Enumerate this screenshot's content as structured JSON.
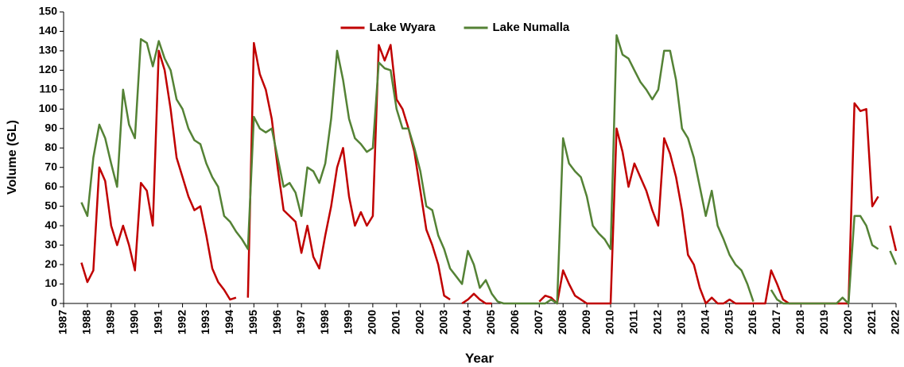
{
  "chart_data": {
    "type": "line",
    "xlabel": "Year",
    "ylabel": "Volume (GL)",
    "legend": "upper center",
    "grid": false,
    "xlim": [
      1987,
      2022
    ],
    "xticks": [
      1987,
      1988,
      1989,
      1990,
      1991,
      1992,
      1993,
      1994,
      1995,
      1996,
      1997,
      1998,
      1999,
      2000,
      2001,
      2002,
      2003,
      2004,
      2005,
      2006,
      2007,
      2008,
      2009,
      2010,
      2011,
      2012,
      2013,
      2014,
      2015,
      2016,
      2017,
      2018,
      2019,
      2020,
      2021,
      2022
    ],
    "ylim": [
      0,
      150
    ],
    "yticks": [
      0,
      10,
      20,
      30,
      40,
      50,
      60,
      70,
      80,
      90,
      100,
      110,
      120,
      130,
      140,
      150
    ],
    "x": [
      1987.75,
      1988,
      1988.25,
      1988.5,
      1988.75,
      1989,
      1989.25,
      1989.5,
      1989.75,
      1990,
      1990.25,
      1990.5,
      1990.75,
      1991,
      1991.25,
      1991.5,
      1991.75,
      1992,
      1992.25,
      1992.5,
      1992.75,
      1993,
      1993.25,
      1993.5,
      1993.75,
      1994,
      1994.25,
      1994.5,
      1994.75,
      1995,
      1995.25,
      1995.5,
      1995.75,
      1996,
      1996.25,
      1996.5,
      1996.75,
      1997,
      1997.25,
      1997.5,
      1997.75,
      1998,
      1998.25,
      1998.5,
      1998.75,
      1999,
      1999.25,
      1999.5,
      1999.75,
      2000,
      2000.25,
      2000.5,
      2000.75,
      2001,
      2001.25,
      2001.5,
      2001.75,
      2002,
      2002.25,
      2002.5,
      2002.75,
      2003,
      2003.25,
      2003.5,
      2003.75,
      2004,
      2004.25,
      2004.5,
      2004.75,
      2005,
      2005.25,
      2005.5,
      2005.75,
      2006,
      2006.25,
      2006.5,
      2006.75,
      2007,
      2007.25,
      2007.5,
      2007.75,
      2008,
      2008.25,
      2008.5,
      2008.75,
      2009,
      2009.25,
      2009.5,
      2009.75,
      2010,
      2010.25,
      2010.5,
      2010.75,
      2011,
      2011.25,
      2011.5,
      2011.75,
      2012,
      2012.25,
      2012.5,
      2012.75,
      2013,
      2013.25,
      2013.5,
      2013.75,
      2014,
      2014.25,
      2014.5,
      2014.75,
      2015,
      2015.25,
      2015.5,
      2015.75,
      2016,
      2016.25,
      2016.5,
      2016.75,
      2017,
      2017.25,
      2017.5,
      2017.75,
      2018,
      2018.25,
      2018.5,
      2018.75,
      2019,
      2019.25,
      2019.5,
      2019.75,
      2020,
      2020.25,
      2020.5,
      2020.75,
      2021,
      2021.25,
      2021.5,
      2021.75,
      2022
    ],
    "series": [
      {
        "name": "Lake Wyara",
        "color": "#c00000",
        "values": [
          21,
          11,
          17,
          70,
          63,
          40,
          30,
          40,
          30,
          17,
          62,
          58,
          40,
          130,
          120,
          100,
          75,
          65,
          55,
          48,
          50,
          35,
          18,
          11,
          7,
          2,
          3,
          null,
          3,
          134,
          118,
          110,
          95,
          70,
          48,
          45,
          42,
          26,
          40,
          24,
          18,
          35,
          50,
          70,
          80,
          55,
          40,
          47,
          40,
          45,
          133,
          125,
          133,
          105,
          100,
          90,
          78,
          58,
          38,
          30,
          20,
          4,
          2,
          null,
          0,
          2,
          5,
          2,
          0,
          0,
          null,
          null,
          null,
          null,
          null,
          null,
          null,
          1,
          4,
          3,
          0,
          17,
          10,
          4,
          2,
          0,
          0,
          0,
          0,
          0,
          90,
          78,
          60,
          72,
          65,
          58,
          48,
          40,
          85,
          77,
          65,
          48,
          25,
          20,
          8,
          0,
          3,
          0,
          0,
          2,
          0,
          0,
          0,
          0,
          0,
          0,
          17,
          10,
          2,
          0,
          0,
          0,
          0,
          0,
          0,
          0,
          0,
          0,
          0,
          0,
          103,
          99,
          100,
          50,
          55,
          null,
          40,
          27
        ]
      },
      {
        "name": "Lake Numalla",
        "color": "#548235",
        "values": [
          52,
          45,
          75,
          92,
          85,
          72,
          60,
          110,
          92,
          85,
          136,
          134,
          122,
          135,
          126,
          120,
          105,
          100,
          90,
          84,
          82,
          72,
          65,
          60,
          45,
          42,
          37,
          33,
          28,
          96,
          90,
          88,
          90,
          75,
          60,
          62,
          57,
          45,
          70,
          68,
          62,
          72,
          95,
          130,
          115,
          95,
          85,
          82,
          78,
          80,
          124,
          121,
          120,
          100,
          90,
          90,
          80,
          68,
          50,
          48,
          35,
          28,
          18,
          14,
          10,
          27,
          20,
          8,
          12,
          5,
          1,
          0,
          0,
          0,
          0,
          0,
          0,
          0,
          0,
          2,
          0,
          85,
          72,
          68,
          65,
          55,
          40,
          36,
          33,
          28,
          138,
          128,
          126,
          120,
          114,
          110,
          105,
          110,
          130,
          130,
          115,
          90,
          85,
          75,
          60,
          45,
          58,
          40,
          33,
          25,
          20,
          17,
          10,
          1,
          null,
          null,
          7,
          2,
          0,
          0,
          0,
          0,
          0,
          0,
          0,
          0,
          0,
          0,
          3,
          0,
          45,
          45,
          40,
          30,
          28,
          null,
          27,
          20
        ]
      }
    ]
  }
}
